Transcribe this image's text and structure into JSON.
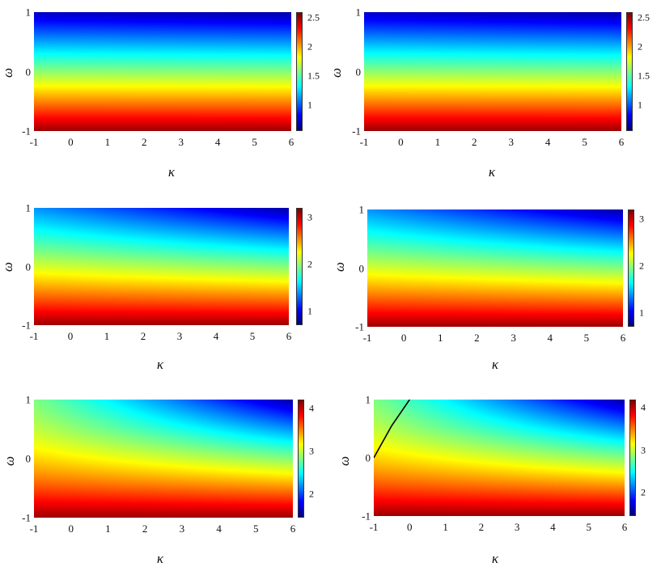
{
  "chart_data": [
    {
      "type": "heatmap",
      "xlabel": "κ",
      "ylabel": "ω",
      "x_ticks": [
        "-1",
        "0",
        "1",
        "2",
        "3",
        "4",
        "5",
        "6"
      ],
      "y_ticks": [
        "1",
        "0",
        "-1"
      ],
      "xlim": [
        -1,
        6
      ],
      "ylim": [
        -1,
        1
      ],
      "colorscale": "jet",
      "color_range": [
        0.55,
        2.6
      ],
      "color_ticks": [
        "2.5",
        "2",
        "1.5",
        "1"
      ],
      "color_tick_values": [
        2.5,
        2,
        1.5,
        1
      ],
      "curvature": 0.05,
      "curve_line": null
    },
    {
      "type": "heatmap",
      "xlabel": "κ",
      "ylabel": "ω",
      "x_ticks": [
        "-1",
        "0",
        "1",
        "2",
        "3",
        "4",
        "5",
        "6"
      ],
      "y_ticks": [
        "1",
        "0",
        "-1"
      ],
      "xlim": [
        -1,
        6
      ],
      "ylim": [
        -1,
        1
      ],
      "colorscale": "jet",
      "color_range": [
        0.55,
        2.6
      ],
      "color_ticks": [
        "2.5",
        "2",
        "1.5",
        "1"
      ],
      "color_tick_values": [
        2.5,
        2,
        1.5,
        1
      ],
      "curvature": 0.06,
      "curve_line": null
    },
    {
      "type": "heatmap",
      "xlabel": "κ",
      "ylabel": "ω",
      "x_ticks": [
        "-1",
        "0",
        "1",
        "2",
        "3",
        "4",
        "5",
        "6"
      ],
      "y_ticks": [
        "1",
        "0",
        "-1"
      ],
      "xlim": [
        -1,
        6
      ],
      "ylim": [
        -1,
        1
      ],
      "colorscale": "jet",
      "color_range": [
        0.7,
        3.2
      ],
      "color_ticks": [
        "3",
        "2",
        "1"
      ],
      "color_tick_values": [
        3,
        2,
        1
      ],
      "curvature": 0.45,
      "curve_line": null
    },
    {
      "type": "heatmap",
      "xlabel": "κ",
      "ylabel": "ω",
      "x_ticks": [
        "-1",
        "0",
        "1",
        "2",
        "3",
        "4",
        "5",
        "6"
      ],
      "y_ticks": [
        "1",
        "0",
        "-1"
      ],
      "xlim": [
        -1,
        6
      ],
      "ylim": [
        -1,
        1
      ],
      "colorscale": "jet",
      "color_range": [
        0.7,
        3.2
      ],
      "color_ticks": [
        "3",
        "2",
        "1"
      ],
      "color_tick_values": [
        3,
        2,
        1
      ],
      "curvature": 0.45,
      "curve_line": null
    },
    {
      "type": "heatmap",
      "xlabel": "κ",
      "ylabel": "ω",
      "x_ticks": [
        "-1",
        "0",
        "1",
        "2",
        "3",
        "4",
        "5",
        "6"
      ],
      "y_ticks": [
        "1",
        "0",
        "-1"
      ],
      "xlim": [
        -1,
        6
      ],
      "ylim": [
        -1,
        1
      ],
      "colorscale": "jet",
      "color_range": [
        1.45,
        4.2
      ],
      "color_ticks": [
        "4",
        "3",
        "2"
      ],
      "color_tick_values": [
        4,
        3,
        2
      ],
      "curvature": 0.9,
      "curve_line": null
    },
    {
      "type": "heatmap",
      "xlabel": "κ",
      "ylabel": "ω",
      "x_ticks": [
        "-1",
        "0",
        "1",
        "2",
        "3",
        "4",
        "5",
        "6"
      ],
      "y_ticks": [
        "1",
        "0",
        "-1"
      ],
      "xlim": [
        -1,
        6
      ],
      "ylim": [
        -1,
        1
      ],
      "colorscale": "jet",
      "color_range": [
        1.45,
        4.2
      ],
      "color_ticks": [
        "4",
        "3",
        "2"
      ],
      "color_tick_values": [
        4,
        3,
        2
      ],
      "curvature": 0.9,
      "curve_line": {
        "color": "#000000",
        "points": [
          [
            -1,
            0.0
          ],
          [
            -0.5,
            0.55
          ],
          [
            0.0,
            1.0
          ]
        ]
      }
    }
  ]
}
